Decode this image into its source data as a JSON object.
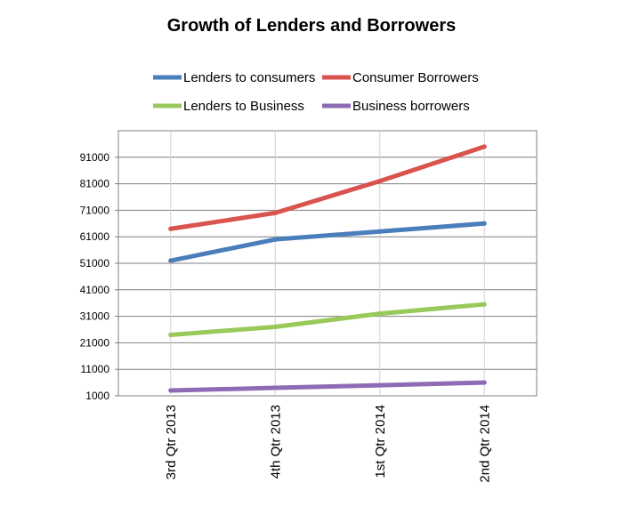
{
  "chart_data": {
    "type": "line",
    "title": "Growth of Lenders and Borrowers",
    "xlabel": "",
    "ylabel": "",
    "categories": [
      "3rd Qtr 2013",
      "4th Qtr 2013",
      "1st Qtr 2014",
      "2nd Qtr 2014"
    ],
    "ylim": [
      1000,
      101000
    ],
    "yticks": [
      "91000",
      "81000",
      "71000",
      "61000",
      "51000",
      "41000",
      "31000",
      "21000",
      "11000",
      "1000"
    ],
    "grid": true,
    "legend_position": "top",
    "series": [
      {
        "name": "Lenders to consumers",
        "color": "#4a7ebb",
        "values": [
          52000,
          60000,
          63000,
          66000
        ]
      },
      {
        "name": "Consumer Borrowers",
        "color": "#d9534f",
        "values": [
          64000,
          70000,
          82000,
          95000
        ]
      },
      {
        "name": "Lenders to Business",
        "color": "#98c95a",
        "values": [
          24000,
          27000,
          32000,
          35500
        ]
      },
      {
        "name": "Business borrowers",
        "color": "#8e6bb5",
        "values": [
          3000,
          4000,
          5000,
          6000
        ]
      }
    ]
  }
}
